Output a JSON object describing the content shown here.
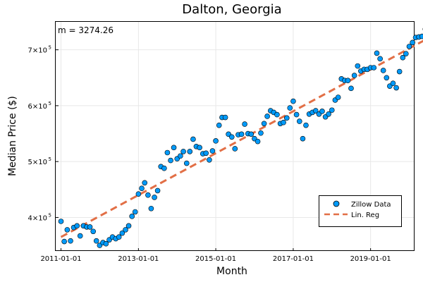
{
  "chart_data": {
    "type": "scatter",
    "title": "Dalton, Georgia",
    "xlabel": "Month",
    "ylabel": "Median Price ($)",
    "annotation": "m = 3274.26",
    "x_ticks": [
      "2011-01-01",
      "2013-01-01",
      "2015-01-01",
      "2017-01-01",
      "2019-01-01"
    ],
    "y_ticks": [
      {
        "value": 400000,
        "base": "4×10",
        "exp": "5"
      },
      {
        "value": 500000,
        "base": "5×10",
        "exp": "5"
      },
      {
        "value": 600000,
        "base": "6×10",
        "exp": "5"
      },
      {
        "value": 700000,
        "base": "7×10",
        "exp": "5"
      }
    ],
    "xlim": [
      "2010-11-12",
      "2020-02-20"
    ],
    "ylim": [
      340000,
      750000
    ],
    "grid": true,
    "legend_position": "bottom-right",
    "series": [
      {
        "name": "Zillow Data",
        "kind": "scatter",
        "color": "#009AF9",
        "points": [
          [
            "2011-01-01",
            393000
          ],
          [
            "2011-02-01",
            357000
          ],
          [
            "2011-03-01",
            378000
          ],
          [
            "2011-04-01",
            358000
          ],
          [
            "2011-05-01",
            382000
          ],
          [
            "2011-06-01",
            385000
          ],
          [
            "2011-07-01",
            367000
          ],
          [
            "2011-08-01",
            385000
          ],
          [
            "2011-09-01",
            383000
          ],
          [
            "2011-10-01",
            383000
          ],
          [
            "2011-11-01",
            375000
          ],
          [
            "2011-12-01",
            358000
          ],
          [
            "2012-01-01",
            350000
          ],
          [
            "2012-02-01",
            355000
          ],
          [
            "2012-03-01",
            353000
          ],
          [
            "2012-04-01",
            360000
          ],
          [
            "2012-05-01",
            365000
          ],
          [
            "2012-06-01",
            362000
          ],
          [
            "2012-07-01",
            365000
          ],
          [
            "2012-08-01",
            372000
          ],
          [
            "2012-09-01",
            378000
          ],
          [
            "2012-10-01",
            385000
          ],
          [
            "2012-11-01",
            402000
          ],
          [
            "2012-12-01",
            410000
          ],
          [
            "2013-01-01",
            442000
          ],
          [
            "2013-02-01",
            452000
          ],
          [
            "2013-03-01",
            462000
          ],
          [
            "2013-04-01",
            440000
          ],
          [
            "2013-05-01",
            416000
          ],
          [
            "2013-06-01",
            436000
          ],
          [
            "2013-07-01",
            448000
          ],
          [
            "2013-08-01",
            491000
          ],
          [
            "2013-09-01",
            488000
          ],
          [
            "2013-10-01",
            516000
          ],
          [
            "2013-11-01",
            502000
          ],
          [
            "2013-12-01",
            525000
          ],
          [
            "2014-01-01",
            505000
          ],
          [
            "2014-02-01",
            510000
          ],
          [
            "2014-03-01",
            518000
          ],
          [
            "2014-04-01",
            497000
          ],
          [
            "2014-05-01",
            518000
          ],
          [
            "2014-06-01",
            540000
          ],
          [
            "2014-07-01",
            527000
          ],
          [
            "2014-08-01",
            525000
          ],
          [
            "2014-09-01",
            514000
          ],
          [
            "2014-10-01",
            515000
          ],
          [
            "2014-11-01",
            503000
          ],
          [
            "2014-12-01",
            519000
          ],
          [
            "2015-01-01",
            537000
          ],
          [
            "2015-02-01",
            565000
          ],
          [
            "2015-03-01",
            579000
          ],
          [
            "2015-04-01",
            579000
          ],
          [
            "2015-05-01",
            549000
          ],
          [
            "2015-06-01",
            544000
          ],
          [
            "2015-07-01",
            523000
          ],
          [
            "2015-08-01",
            548000
          ],
          [
            "2015-09-01",
            549000
          ],
          [
            "2015-10-01",
            567000
          ],
          [
            "2015-11-01",
            550000
          ],
          [
            "2015-12-01",
            549000
          ],
          [
            "2016-01-01",
            541000
          ],
          [
            "2016-02-01",
            536000
          ],
          [
            "2016-03-01",
            551000
          ],
          [
            "2016-04-01",
            568000
          ],
          [
            "2016-05-01",
            581000
          ],
          [
            "2016-06-01",
            591000
          ],
          [
            "2016-07-01",
            588000
          ],
          [
            "2016-08-01",
            584000
          ],
          [
            "2016-09-01",
            568000
          ],
          [
            "2016-10-01",
            570000
          ],
          [
            "2016-11-01",
            578000
          ],
          [
            "2016-12-01",
            596000
          ],
          [
            "2017-01-01",
            608000
          ],
          [
            "2017-02-01",
            584000
          ],
          [
            "2017-03-01",
            572000
          ],
          [
            "2017-04-01",
            541000
          ],
          [
            "2017-05-01",
            565000
          ],
          [
            "2017-06-01",
            585000
          ],
          [
            "2017-07-01",
            588000
          ],
          [
            "2017-08-01",
            591000
          ],
          [
            "2017-09-01",
            585000
          ],
          [
            "2017-10-01",
            590000
          ],
          [
            "2017-11-01",
            580000
          ],
          [
            "2017-12-01",
            585000
          ],
          [
            "2018-01-01",
            592000
          ],
          [
            "2018-02-01",
            610000
          ],
          [
            "2018-03-01",
            615000
          ],
          [
            "2018-04-01",
            648000
          ],
          [
            "2018-05-01",
            645000
          ],
          [
            "2018-06-01",
            645000
          ],
          [
            "2018-07-01",
            631000
          ],
          [
            "2018-08-01",
            654000
          ],
          [
            "2018-09-01",
            671000
          ],
          [
            "2018-10-01",
            662000
          ],
          [
            "2018-11-01",
            665000
          ],
          [
            "2018-12-01",
            665000
          ],
          [
            "2019-01-01",
            668000
          ],
          [
            "2019-02-01",
            668000
          ],
          [
            "2019-03-01",
            694000
          ],
          [
            "2019-04-01",
            684000
          ],
          [
            "2019-05-01",
            663000
          ],
          [
            "2019-06-01",
            650000
          ],
          [
            "2019-07-01",
            635000
          ],
          [
            "2019-08-01",
            640000
          ],
          [
            "2019-09-01",
            632000
          ],
          [
            "2019-10-01",
            661000
          ],
          [
            "2019-11-01",
            686000
          ],
          [
            "2019-12-01",
            693000
          ],
          [
            "2020-01-01",
            706000
          ],
          [
            "2020-02-01",
            713000
          ],
          [
            "2020-03-01",
            722000
          ],
          [
            "2020-04-01",
            723000
          ],
          [
            "2020-05-01",
            724000
          ],
          [
            "2020-06-01",
            737000
          ]
        ]
      },
      {
        "name": "Lin. Reg",
        "kind": "dashed-line",
        "color": "#E26F46",
        "points": [
          [
            "2011-01-01",
            365000
          ],
          [
            "2020-06-01",
            718000
          ]
        ]
      }
    ]
  }
}
